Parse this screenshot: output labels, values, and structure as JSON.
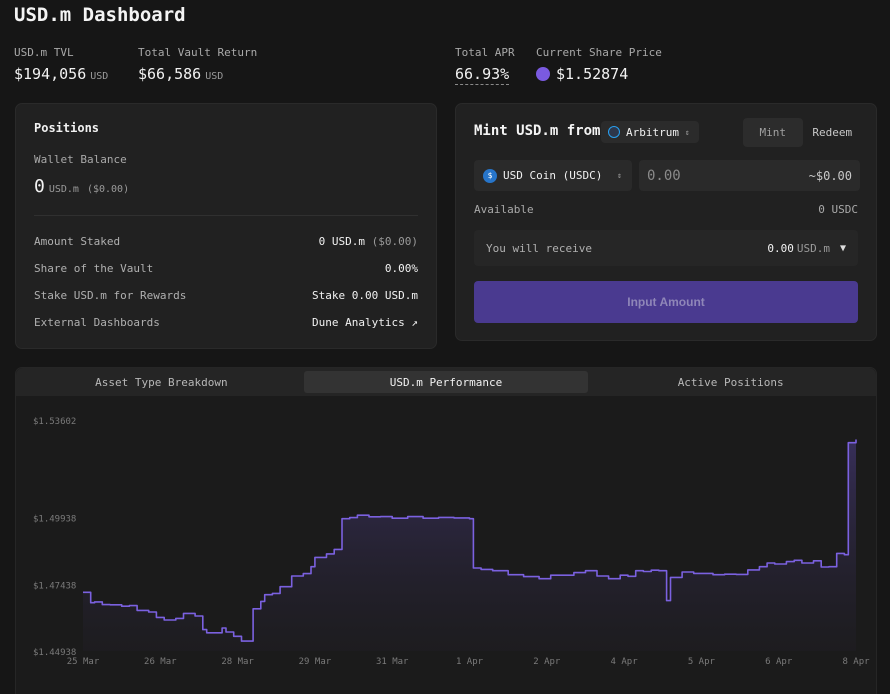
{
  "page": {
    "title": "USD.m Dashboard"
  },
  "stats": {
    "tvl": {
      "label": "USD.m TVL",
      "value": "$194,056",
      "unit": "USD"
    },
    "vault_return": {
      "label": "Total Vault Return",
      "value": "$66,586",
      "unit": "USD"
    },
    "apr": {
      "label": "Total APR",
      "value": "66.93%"
    },
    "share_price": {
      "label": "Current Share Price",
      "value": "$1.52874",
      "icon": "purple-dot-icon",
      "color": "#7a5ae0"
    }
  },
  "positions": {
    "title": "Positions",
    "wallet_label": "Wallet Balance",
    "wallet_value": "0",
    "wallet_unit": "USD.m",
    "wallet_usd": "($0.00)",
    "rows": [
      {
        "label": "Amount Staked",
        "value": "0 USD.m",
        "sub": "($0.00)"
      },
      {
        "label": "Share of the Vault",
        "value": "0.00%"
      },
      {
        "label": "Stake USD.m for Rewards",
        "value": "Stake 0.00 USD.m"
      },
      {
        "label": "External Dashboards",
        "value": "Dune Analytics ↗"
      }
    ]
  },
  "mint": {
    "title": "Mint USD.m from",
    "chain": "Arbitrum",
    "tabs": {
      "mint": "Mint",
      "redeem": "Redeem"
    },
    "token": "USD Coin (USDC)",
    "amount_placeholder": "0.00",
    "usd_estimate": "~$0.00",
    "available_label": "Available",
    "available_value": "0 USDC",
    "receive_label": "You will receive",
    "receive_value": "0.00",
    "receive_unit": "USD.m",
    "cta": "Input Amount"
  },
  "chart_tabs": [
    "Asset Type Breakdown",
    "USD.m Performance",
    "Active Positions"
  ],
  "chart_data": {
    "type": "area",
    "title": "",
    "xlabel": "",
    "ylabel": "",
    "line_color": "#7b61e0",
    "y_ticks": [
      "$1.53602",
      "$1.49938",
      "$1.47438",
      "$1.44938"
    ],
    "y_tick_values": [
      1.53602,
      1.49938,
      1.47438,
      1.44938
    ],
    "x_ticks": [
      "25 Mar",
      "26 Mar",
      "28 Mar",
      "29 Mar",
      "31 Mar",
      "1 Apr",
      "2 Apr",
      "4 Apr",
      "5 Apr",
      "6 Apr",
      "8 Apr"
    ],
    "x_tick_positions": [
      0,
      1,
      2,
      3,
      4,
      5,
      6,
      7,
      8,
      9,
      10
    ],
    "ylim": [
      1.44938,
      1.53602
    ],
    "series": [
      {
        "x": [
          0,
          0.1,
          0.15,
          0.25,
          0.35,
          0.5,
          0.6,
          0.7,
          0.85,
          0.95,
          1.05,
          1.2,
          1.3,
          1.45,
          1.55,
          1.6,
          1.8,
          1.85,
          1.95,
          2.05,
          2.2,
          2.3,
          2.35,
          2.45,
          2.55,
          2.7,
          2.85,
          2.95,
          3.0,
          3.15,
          3.25,
          3.35,
          3.45,
          3.55,
          3.7,
          3.85,
          4.0,
          4.2,
          4.4,
          4.6,
          4.8,
          5.0,
          5.05,
          5.15,
          5.3,
          5.5,
          5.7,
          5.9,
          6.05,
          6.2,
          6.35,
          6.5,
          6.65,
          6.8,
          6.95,
          7.05,
          7.15,
          7.25,
          7.35,
          7.45,
          7.55,
          7.6,
          7.75,
          7.9,
          8.0,
          8.15,
          8.3,
          8.45,
          8.6,
          8.75,
          8.85,
          8.95,
          9.1,
          9.2,
          9.3,
          9.45,
          9.55,
          9.65,
          9.75,
          9.85,
          9.9,
          10.0
        ],
        "values": [
          1.4714,
          1.4675,
          1.4678,
          1.4668,
          1.4667,
          1.4662,
          1.4664,
          1.4646,
          1.464,
          1.462,
          1.461,
          1.4616,
          1.4635,
          1.4625,
          1.4574,
          1.4562,
          1.458,
          1.4565,
          1.4549,
          1.4531,
          1.4652,
          1.468,
          1.4705,
          1.471,
          1.4735,
          1.4775,
          1.4784,
          1.481,
          1.4845,
          1.4858,
          1.4875,
          1.499,
          1.4994,
          1.5003,
          1.4997,
          1.4998,
          1.4992,
          1.4998,
          1.4992,
          1.4995,
          1.4993,
          1.499,
          1.4805,
          1.48,
          1.4795,
          1.478,
          1.4773,
          1.4765,
          1.4778,
          1.4778,
          1.4788,
          1.4795,
          1.4775,
          1.4765,
          1.4778,
          1.4774,
          1.4795,
          1.4792,
          1.4797,
          1.4795,
          1.4683,
          1.477,
          1.479,
          1.4785,
          1.4785,
          1.478,
          1.4782,
          1.4781,
          1.4798,
          1.481,
          1.4824,
          1.482,
          1.4829,
          1.4834,
          1.4824,
          1.4832,
          1.4809,
          1.481,
          1.486,
          1.4855,
          1.5275,
          1.5287
        ]
      }
    ]
  }
}
